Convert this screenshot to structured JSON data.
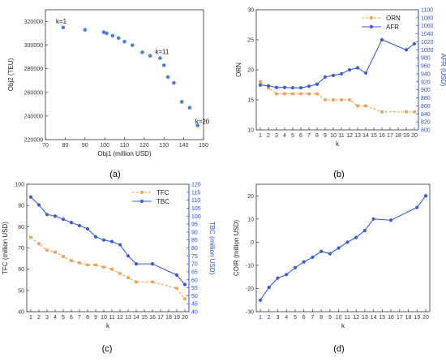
{
  "colors": {
    "orange": "#f0a050",
    "blue": "#3b5bdb",
    "axis_blue": "#2b4fd8",
    "scatter": "#4a7fe0"
  },
  "panels": {
    "a": "(a)",
    "b": "(b)",
    "c": "(c)",
    "d": "(d)"
  },
  "chart_data": [
    {
      "id": "a",
      "type": "scatter",
      "xlabel": "Obj1 (million USD)",
      "ylabel": "Obj2 (TEU)",
      "xlim": [
        70,
        150
      ],
      "ylim": [
        220000,
        330000
      ],
      "xticks": [
        70,
        80,
        90,
        100,
        110,
        120,
        130,
        140,
        150
      ],
      "yticks": [
        220000,
        240000,
        260000,
        280000,
        300000,
        320000
      ],
      "points": [
        {
          "x": 79,
          "y": 315000
        },
        {
          "x": 90,
          "y": 313000
        },
        {
          "x": 99.5,
          "y": 311000
        },
        {
          "x": 101,
          "y": 310000
        },
        {
          "x": 104,
          "y": 308000
        },
        {
          "x": 107,
          "y": 306000
        },
        {
          "x": 110,
          "y": 303000
        },
        {
          "x": 114,
          "y": 300000
        },
        {
          "x": 119,
          "y": 294000
        },
        {
          "x": 123,
          "y": 291000
        },
        {
          "x": 128,
          "y": 289000
        },
        {
          "x": 130,
          "y": 283000
        },
        {
          "x": 132,
          "y": 273000
        },
        {
          "x": 135,
          "y": 268000
        },
        {
          "x": 139,
          "y": 252000
        },
        {
          "x": 143,
          "y": 247000
        },
        {
          "x": 147,
          "y": 232000
        }
      ],
      "annotations": [
        {
          "text": "k=1",
          "x": 79,
          "y": 315000
        },
        {
          "text": "k=11",
          "x": 128,
          "y": 289000
        },
        {
          "text": "k=20",
          "x": 147,
          "y": 232000
        }
      ]
    },
    {
      "id": "b",
      "type": "line",
      "xlabel": "k",
      "ylabel": "ORN",
      "ylabel2": "AFR (USD)",
      "x": [
        1,
        2,
        3,
        4,
        5,
        6,
        7,
        8,
        9,
        10,
        11,
        12,
        13,
        14,
        16,
        19,
        20
      ],
      "xticks": [
        1,
        2,
        3,
        4,
        5,
        6,
        7,
        8,
        9,
        10,
        11,
        12,
        13,
        14,
        15,
        16,
        17,
        18,
        19,
        20
      ],
      "ylim": [
        10,
        30
      ],
      "yticks": [
        10,
        15,
        20,
        25,
        30
      ],
      "ylim2": [
        800,
        1100
      ],
      "yticks2": [
        800,
        820,
        840,
        860,
        880,
        900,
        920,
        940,
        960,
        980,
        1000,
        1020,
        1040,
        1060,
        1080,
        1100
      ],
      "legend_position": "top-right",
      "series": [
        {
          "name": "ORN",
          "axis": "left",
          "color": "orange",
          "dashed": true,
          "marker": "square",
          "values": [
            18,
            17,
            16,
            16,
            16,
            16,
            16,
            16,
            15,
            15,
            15,
            15,
            14,
            14,
            13,
            13,
            13
          ]
        },
        {
          "name": "AFR",
          "axis": "right",
          "color": "blue",
          "dashed": false,
          "marker": "circle",
          "values": [
            912,
            910,
            906,
            906,
            905,
            905,
            909,
            914,
            932,
            936,
            940,
            950,
            955,
            942,
            1025,
            1000,
            1015
          ]
        }
      ]
    },
    {
      "id": "c",
      "type": "line",
      "xlabel": "k",
      "ylabel": "TFC (million USD)",
      "ylabel2": "TBC (million USD)",
      "x": [
        1,
        2,
        3,
        4,
        5,
        6,
        7,
        8,
        9,
        10,
        11,
        12,
        13,
        14,
        16,
        19,
        20
      ],
      "xticks": [
        1,
        2,
        3,
        4,
        5,
        6,
        7,
        8,
        9,
        10,
        11,
        12,
        13,
        14,
        15,
        16,
        17,
        18,
        19,
        20
      ],
      "ylim": [
        40,
        100
      ],
      "yticks": [
        40,
        50,
        60,
        70,
        80,
        90,
        100
      ],
      "ylim2": [
        40,
        120
      ],
      "yticks2": [
        40,
        45,
        50,
        55,
        60,
        65,
        70,
        75,
        80,
        85,
        90,
        95,
        100,
        105,
        110,
        115,
        120
      ],
      "legend_position": "top-right",
      "series": [
        {
          "name": "TFC",
          "axis": "left",
          "color": "orange",
          "dashed": true,
          "marker": "square",
          "values": [
            75,
            72,
            69,
            68,
            66,
            64,
            63,
            62,
            62,
            61,
            60,
            58,
            56,
            54,
            54,
            51,
            46
          ]
        },
        {
          "name": "TBC",
          "axis": "right",
          "color": "blue",
          "dashed": false,
          "marker": "circle",
          "values": [
            112,
            107,
            101,
            100,
            98,
            96,
            94,
            92,
            87,
            85,
            84,
            82,
            75,
            70,
            70,
            63,
            57
          ]
        }
      ]
    },
    {
      "id": "d",
      "type": "line",
      "xlabel": "k",
      "ylabel": "COIR (million USD)",
      "x": [
        1,
        2,
        3,
        4,
        5,
        6,
        7,
        8,
        9,
        10,
        11,
        12,
        13,
        14,
        16,
        19,
        20
      ],
      "xticks": [
        1,
        2,
        3,
        4,
        5,
        6,
        7,
        8,
        9,
        10,
        11,
        12,
        13,
        14,
        15,
        16,
        17,
        18,
        19,
        20
      ],
      "ylim": [
        -30,
        25
      ],
      "yticks": [
        -30,
        -20,
        -10,
        0,
        10,
        20
      ],
      "series": [
        {
          "color": "blue",
          "dashed": false,
          "marker": "circle",
          "values": [
            -25,
            -19.5,
            -15.5,
            -14,
            -11,
            -8.5,
            -6.5,
            -4,
            -5,
            -2.5,
            0,
            2,
            5,
            10,
            9.5,
            15,
            20
          ]
        }
      ]
    }
  ]
}
